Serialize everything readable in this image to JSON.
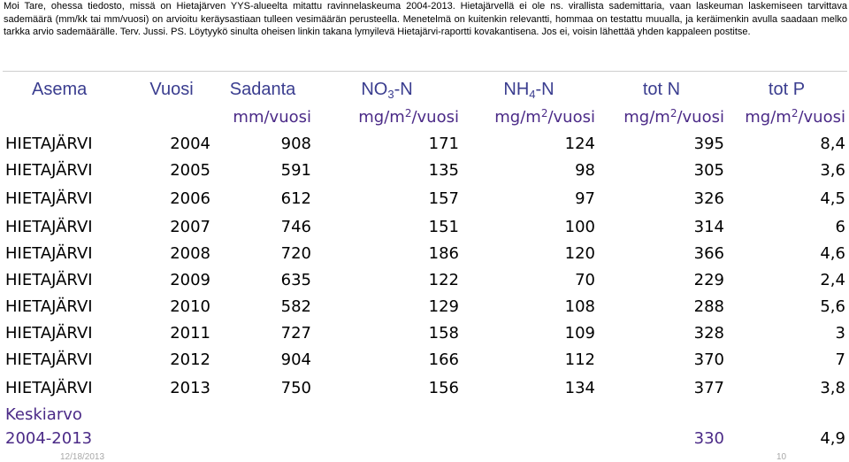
{
  "intro": {
    "line1": "Moi Tare, ohessa tiedosto, missä on Hietajärven YYS-alueelta mitattu ravinnelaskeuma 2004-2013. Hietajärvellä ei ole ns. virallista sademittaria, vaan laskeuman laskemiseen tarvittava sademäärä (mm/kk tai mm/vuosi) on arvioitu keräysastiaan tulleen vesimäärän perusteella. Menetelmä on kuitenkin relevantti, hommaa on testattu muualla, ja keräimenkin avulla saadaan melko tarkka arvio sademäärälle. Terv. Jussi. PS. Löytyykö sinulta oheisen linkin takana lymyilevä Hietajärvi-raportti kovakantisena. Jos ei, voisin lähettää yhden kappaleen postitse."
  },
  "table": {
    "headers": {
      "asema": "Asema",
      "vuosi": "Vuosi",
      "sadanta": "Sadanta",
      "no3_base": "NO",
      "no3_sub": "3",
      "no3_tail": "-N",
      "nh4_base": "NH",
      "nh4_sub": "4",
      "nh4_tail": "-N",
      "totn": "tot N",
      "totp": "tot P"
    },
    "units": {
      "sadanta": "mm/vuosi",
      "dep_base": "mg/m",
      "dep_sup": "2",
      "dep_tail": "/vuosi"
    },
    "rows": [
      {
        "site": "HIETAJÄRVI",
        "year": "2004",
        "sadanta": "908",
        "no3": "171",
        "nh4": "124",
        "totn": "395",
        "totp": "8,4"
      },
      {
        "site": "HIETAJÄRVI",
        "year": "2005",
        "sadanta": "591",
        "no3": "135",
        "nh4": "98",
        "totn": "305",
        "totp": "3,6"
      },
      {
        "site": "HIETAJÄRVI",
        "year": "2006",
        "sadanta": "612",
        "no3": "157",
        "nh4": "97",
        "totn": "326",
        "totp": "4,5"
      },
      {
        "site": "HIETAJÄRVI",
        "year": "2007",
        "sadanta": "746",
        "no3": "151",
        "nh4": "100",
        "totn": "314",
        "totp": "6"
      },
      {
        "site": "HIETAJÄRVI",
        "year": "2008",
        "sadanta": "720",
        "no3": "186",
        "nh4": "120",
        "totn": "366",
        "totp": "4,6"
      },
      {
        "site": "HIETAJÄRVI",
        "year": "2009",
        "sadanta": "635",
        "no3": "122",
        "nh4": "70",
        "totn": "229",
        "totp": "2,4"
      },
      {
        "site": "HIETAJÄRVI",
        "year": "2010",
        "sadanta": "582",
        "no3": "129",
        "nh4": "108",
        "totn": "288",
        "totp": "5,6"
      },
      {
        "site": "HIETAJÄRVI",
        "year": "2011",
        "sadanta": "727",
        "no3": "158",
        "nh4": "109",
        "totn": "328",
        "totp": "3"
      },
      {
        "site": "HIETAJÄRVI",
        "year": "2012",
        "sadanta": "904",
        "no3": "166",
        "nh4": "112",
        "totn": "370",
        "totp": "7"
      },
      {
        "site": "HIETAJÄRVI",
        "year": "2013",
        "sadanta": "750",
        "no3": "156",
        "nh4": "134",
        "totn": "377",
        "totp": "3,8"
      }
    ],
    "average": {
      "label": "Keskiarvo",
      "period": "2004-2013",
      "totn": "330",
      "totp": "4,9"
    }
  },
  "footer": {
    "date": "12/18/2013",
    "page": "10"
  },
  "colors": {
    "header": "#3a3d8f",
    "units": "#4b2a87"
  }
}
